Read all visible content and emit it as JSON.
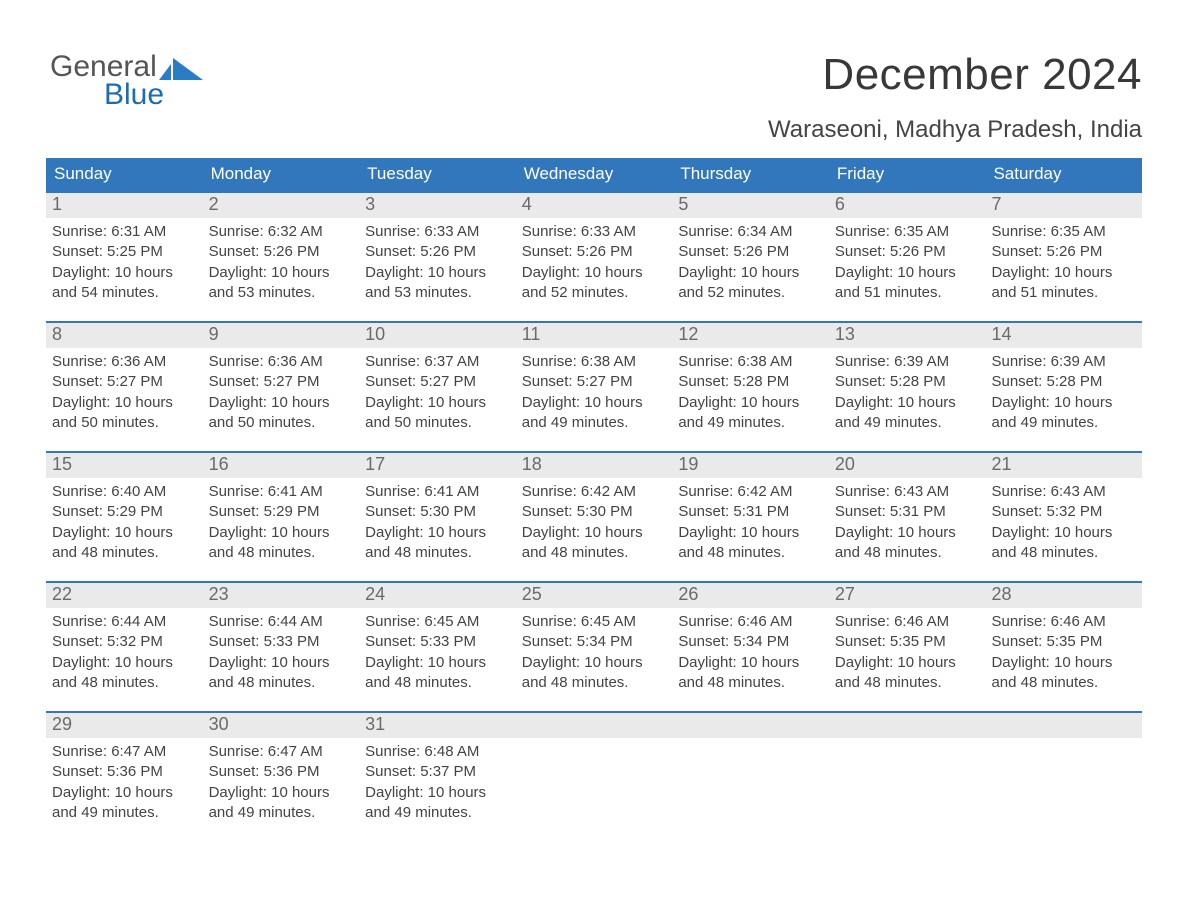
{
  "brand": {
    "line1": "General",
    "line2": "Blue",
    "text_color": "#555555",
    "accent_color": "#1f6bb0",
    "mark_color": "#2a7cc4"
  },
  "header": {
    "month_title": "December 2024",
    "location": "Waraseoni, Madhya Pradesh, India"
  },
  "styling": {
    "header_bg": "#3277bc",
    "header_text": "#ffffff",
    "daynum_bg": "#eaeaea",
    "daynum_text": "#6a6a6a",
    "row_border": "#3277bc",
    "body_text": "#444444",
    "page_bg": "#ffffff",
    "weekday_fontsize": 17,
    "daynum_fontsize": 18,
    "body_fontsize": 15,
    "title_fontsize": 44,
    "location_fontsize": 24
  },
  "weekdays": [
    "Sunday",
    "Monday",
    "Tuesday",
    "Wednesday",
    "Thursday",
    "Friday",
    "Saturday"
  ],
  "weeks": [
    [
      {
        "day": "1",
        "sunrise": "Sunrise: 6:31 AM",
        "sunset": "Sunset: 5:25 PM",
        "daylight1": "Daylight: 10 hours",
        "daylight2": "and 54 minutes."
      },
      {
        "day": "2",
        "sunrise": "Sunrise: 6:32 AM",
        "sunset": "Sunset: 5:26 PM",
        "daylight1": "Daylight: 10 hours",
        "daylight2": "and 53 minutes."
      },
      {
        "day": "3",
        "sunrise": "Sunrise: 6:33 AM",
        "sunset": "Sunset: 5:26 PM",
        "daylight1": "Daylight: 10 hours",
        "daylight2": "and 53 minutes."
      },
      {
        "day": "4",
        "sunrise": "Sunrise: 6:33 AM",
        "sunset": "Sunset: 5:26 PM",
        "daylight1": "Daylight: 10 hours",
        "daylight2": "and 52 minutes."
      },
      {
        "day": "5",
        "sunrise": "Sunrise: 6:34 AM",
        "sunset": "Sunset: 5:26 PM",
        "daylight1": "Daylight: 10 hours",
        "daylight2": "and 52 minutes."
      },
      {
        "day": "6",
        "sunrise": "Sunrise: 6:35 AM",
        "sunset": "Sunset: 5:26 PM",
        "daylight1": "Daylight: 10 hours",
        "daylight2": "and 51 minutes."
      },
      {
        "day": "7",
        "sunrise": "Sunrise: 6:35 AM",
        "sunset": "Sunset: 5:26 PM",
        "daylight1": "Daylight: 10 hours",
        "daylight2": "and 51 minutes."
      }
    ],
    [
      {
        "day": "8",
        "sunrise": "Sunrise: 6:36 AM",
        "sunset": "Sunset: 5:27 PM",
        "daylight1": "Daylight: 10 hours",
        "daylight2": "and 50 minutes."
      },
      {
        "day": "9",
        "sunrise": "Sunrise: 6:36 AM",
        "sunset": "Sunset: 5:27 PM",
        "daylight1": "Daylight: 10 hours",
        "daylight2": "and 50 minutes."
      },
      {
        "day": "10",
        "sunrise": "Sunrise: 6:37 AM",
        "sunset": "Sunset: 5:27 PM",
        "daylight1": "Daylight: 10 hours",
        "daylight2": "and 50 minutes."
      },
      {
        "day": "11",
        "sunrise": "Sunrise: 6:38 AM",
        "sunset": "Sunset: 5:27 PM",
        "daylight1": "Daylight: 10 hours",
        "daylight2": "and 49 minutes."
      },
      {
        "day": "12",
        "sunrise": "Sunrise: 6:38 AM",
        "sunset": "Sunset: 5:28 PM",
        "daylight1": "Daylight: 10 hours",
        "daylight2": "and 49 minutes."
      },
      {
        "day": "13",
        "sunrise": "Sunrise: 6:39 AM",
        "sunset": "Sunset: 5:28 PM",
        "daylight1": "Daylight: 10 hours",
        "daylight2": "and 49 minutes."
      },
      {
        "day": "14",
        "sunrise": "Sunrise: 6:39 AM",
        "sunset": "Sunset: 5:28 PM",
        "daylight1": "Daylight: 10 hours",
        "daylight2": "and 49 minutes."
      }
    ],
    [
      {
        "day": "15",
        "sunrise": "Sunrise: 6:40 AM",
        "sunset": "Sunset: 5:29 PM",
        "daylight1": "Daylight: 10 hours",
        "daylight2": "and 48 minutes."
      },
      {
        "day": "16",
        "sunrise": "Sunrise: 6:41 AM",
        "sunset": "Sunset: 5:29 PM",
        "daylight1": "Daylight: 10 hours",
        "daylight2": "and 48 minutes."
      },
      {
        "day": "17",
        "sunrise": "Sunrise: 6:41 AM",
        "sunset": "Sunset: 5:30 PM",
        "daylight1": "Daylight: 10 hours",
        "daylight2": "and 48 minutes."
      },
      {
        "day": "18",
        "sunrise": "Sunrise: 6:42 AM",
        "sunset": "Sunset: 5:30 PM",
        "daylight1": "Daylight: 10 hours",
        "daylight2": "and 48 minutes."
      },
      {
        "day": "19",
        "sunrise": "Sunrise: 6:42 AM",
        "sunset": "Sunset: 5:31 PM",
        "daylight1": "Daylight: 10 hours",
        "daylight2": "and 48 minutes."
      },
      {
        "day": "20",
        "sunrise": "Sunrise: 6:43 AM",
        "sunset": "Sunset: 5:31 PM",
        "daylight1": "Daylight: 10 hours",
        "daylight2": "and 48 minutes."
      },
      {
        "day": "21",
        "sunrise": "Sunrise: 6:43 AM",
        "sunset": "Sunset: 5:32 PM",
        "daylight1": "Daylight: 10 hours",
        "daylight2": "and 48 minutes."
      }
    ],
    [
      {
        "day": "22",
        "sunrise": "Sunrise: 6:44 AM",
        "sunset": "Sunset: 5:32 PM",
        "daylight1": "Daylight: 10 hours",
        "daylight2": "and 48 minutes."
      },
      {
        "day": "23",
        "sunrise": "Sunrise: 6:44 AM",
        "sunset": "Sunset: 5:33 PM",
        "daylight1": "Daylight: 10 hours",
        "daylight2": "and 48 minutes."
      },
      {
        "day": "24",
        "sunrise": "Sunrise: 6:45 AM",
        "sunset": "Sunset: 5:33 PM",
        "daylight1": "Daylight: 10 hours",
        "daylight2": "and 48 minutes."
      },
      {
        "day": "25",
        "sunrise": "Sunrise: 6:45 AM",
        "sunset": "Sunset: 5:34 PM",
        "daylight1": "Daylight: 10 hours",
        "daylight2": "and 48 minutes."
      },
      {
        "day": "26",
        "sunrise": "Sunrise: 6:46 AM",
        "sunset": "Sunset: 5:34 PM",
        "daylight1": "Daylight: 10 hours",
        "daylight2": "and 48 minutes."
      },
      {
        "day": "27",
        "sunrise": "Sunrise: 6:46 AM",
        "sunset": "Sunset: 5:35 PM",
        "daylight1": "Daylight: 10 hours",
        "daylight2": "and 48 minutes."
      },
      {
        "day": "28",
        "sunrise": "Sunrise: 6:46 AM",
        "sunset": "Sunset: 5:35 PM",
        "daylight1": "Daylight: 10 hours",
        "daylight2": "and 48 minutes."
      }
    ],
    [
      {
        "day": "29",
        "sunrise": "Sunrise: 6:47 AM",
        "sunset": "Sunset: 5:36 PM",
        "daylight1": "Daylight: 10 hours",
        "daylight2": "and 49 minutes."
      },
      {
        "day": "30",
        "sunrise": "Sunrise: 6:47 AM",
        "sunset": "Sunset: 5:36 PM",
        "daylight1": "Daylight: 10 hours",
        "daylight2": "and 49 minutes."
      },
      {
        "day": "31",
        "sunrise": "Sunrise: 6:48 AM",
        "sunset": "Sunset: 5:37 PM",
        "daylight1": "Daylight: 10 hours",
        "daylight2": "and 49 minutes."
      },
      {
        "day": "",
        "sunrise": "",
        "sunset": "",
        "daylight1": "",
        "daylight2": ""
      },
      {
        "day": "",
        "sunrise": "",
        "sunset": "",
        "daylight1": "",
        "daylight2": ""
      },
      {
        "day": "",
        "sunrise": "",
        "sunset": "",
        "daylight1": "",
        "daylight2": ""
      },
      {
        "day": "",
        "sunrise": "",
        "sunset": "",
        "daylight1": "",
        "daylight2": ""
      }
    ]
  ]
}
